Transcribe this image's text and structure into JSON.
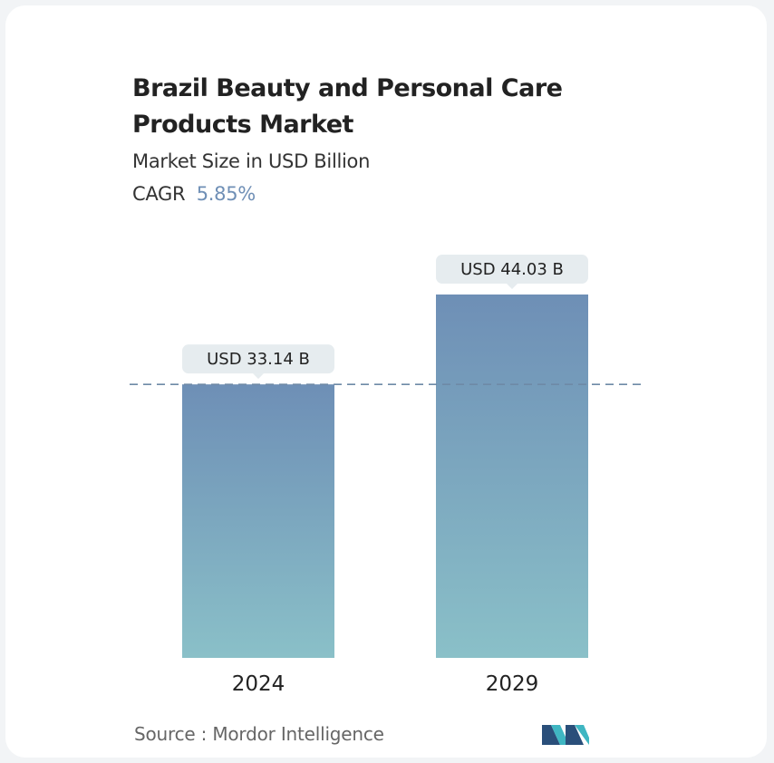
{
  "header": {
    "title": "Brazil Beauty and Personal Care Products Market",
    "subtitle": "Market Size in USD Billion",
    "cagr_label": "CAGR",
    "cagr_value": "5.85%"
  },
  "chart_data": {
    "type": "bar",
    "categories": [
      "2024",
      "2029"
    ],
    "values": [
      33.14,
      44.03
    ],
    "data_labels": [
      "USD 33.14 B",
      "USD 44.03 B"
    ],
    "reference_line": 33.14,
    "ylim": [
      0,
      44.03
    ],
    "grid": false,
    "colors": {
      "bar_top": "#6e8fb6",
      "bar_bottom": "#8ac0c8",
      "label_bg": "#e6ecef",
      "dash": "#6e8aa6"
    }
  },
  "footer": {
    "source": "Source :  Mordor Intelligence",
    "logo_icon": "mordor-intelligence-logo-icon"
  }
}
